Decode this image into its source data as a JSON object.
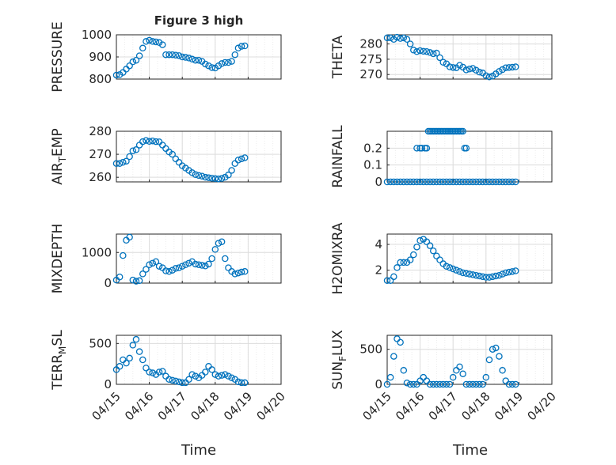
{
  "figure": {
    "title": "Figure 3 high"
  },
  "time_axis": {
    "tick_labels": [
      "04/15",
      "04/16",
      "04/17",
      "04/18",
      "04/19",
      "04/20"
    ],
    "xlabel": "Time"
  },
  "colors": {
    "marker": "#0072bd",
    "axis": "#262626"
  },
  "chart_data": [
    {
      "type": "scatter",
      "panel": "top-left",
      "title": "Figure 3 high",
      "ylabel": "PRESSURE",
      "ylim": [
        800,
        1000
      ],
      "yticks": [
        800,
        900,
        1000
      ],
      "xlim": [
        0,
        5
      ],
      "grid": true,
      "x": [
        0,
        0.1,
        0.2,
        0.3,
        0.4,
        0.5,
        0.6,
        0.7,
        0.8,
        0.9,
        1.0,
        1.1,
        1.2,
        1.3,
        1.4,
        1.5,
        1.6,
        1.7,
        1.8,
        1.9,
        2.0,
        2.1,
        2.2,
        2.3,
        2.4,
        2.5,
        2.6,
        2.7,
        2.8,
        2.9,
        3.0,
        3.1,
        3.2,
        3.3,
        3.4,
        3.5,
        3.6,
        3.7,
        3.8,
        3.9
      ],
      "y": [
        818,
        820,
        830,
        845,
        860,
        878,
        885,
        905,
        940,
        970,
        975,
        970,
        968,
        965,
        955,
        910,
        910,
        910,
        908,
        906,
        900,
        898,
        895,
        890,
        885,
        885,
        880,
        868,
        860,
        852,
        850,
        860,
        870,
        875,
        875,
        880,
        910,
        940,
        948,
        950
      ]
    },
    {
      "type": "scatter",
      "panel": "top-right",
      "ylabel": "THETA",
      "ylim": [
        268.5,
        283
      ],
      "yticks": [
        270,
        275,
        280
      ],
      "xlim": [
        0,
        5
      ],
      "grid": true,
      "x": [
        0,
        0.1,
        0.2,
        0.3,
        0.4,
        0.5,
        0.6,
        0.7,
        0.8,
        0.9,
        1.0,
        1.1,
        1.2,
        1.3,
        1.4,
        1.5,
        1.6,
        1.7,
        1.8,
        1.9,
        2.0,
        2.1,
        2.2,
        2.3,
        2.4,
        2.5,
        2.6,
        2.7,
        2.8,
        2.9,
        3.0,
        3.1,
        3.2,
        3.3,
        3.4,
        3.5,
        3.6,
        3.7,
        3.8,
        3.9
      ],
      "y": [
        282,
        282,
        281.5,
        282.2,
        281.8,
        282,
        281.5,
        280,
        278,
        277.5,
        277.8,
        277.6,
        277.5,
        277.2,
        276.8,
        277,
        275.5,
        274,
        273.5,
        272.5,
        272.3,
        272.2,
        273,
        272.4,
        271.5,
        271.8,
        272,
        271.4,
        270.8,
        270.5,
        269.6,
        269.2,
        269.5,
        270.2,
        271,
        271.6,
        272.2,
        272.3,
        272.4,
        272.5
      ]
    },
    {
      "type": "scatter",
      "panel": "row2-left",
      "ylabel": "AIR_TEMP",
      "ylim": [
        258,
        280
      ],
      "yticks": [
        260,
        270,
        280
      ],
      "xlim": [
        0,
        5
      ],
      "grid": true,
      "x": [
        0,
        0.1,
        0.2,
        0.3,
        0.4,
        0.5,
        0.6,
        0.7,
        0.8,
        0.9,
        1.0,
        1.1,
        1.2,
        1.3,
        1.4,
        1.5,
        1.6,
        1.7,
        1.8,
        1.9,
        2.0,
        2.1,
        2.2,
        2.3,
        2.4,
        2.5,
        2.6,
        2.7,
        2.8,
        2.9,
        3.0,
        3.1,
        3.2,
        3.3,
        3.4,
        3.5,
        3.6,
        3.7,
        3.8,
        3.9
      ],
      "y": [
        266,
        266,
        266.5,
        267,
        269,
        271.5,
        272,
        274,
        275.5,
        276,
        275.6,
        275.8,
        275.5,
        275.4,
        274,
        272.5,
        271,
        270,
        268,
        266.5,
        265,
        264,
        263,
        262,
        261.2,
        260.8,
        260.5,
        260,
        259.8,
        259.6,
        259.4,
        259.3,
        259.5,
        260,
        261,
        263,
        266,
        267.5,
        268,
        268.5
      ]
    },
    {
      "type": "scatter",
      "panel": "row2-right",
      "ylabel": "RAINFALL",
      "ylim": [
        0,
        0.3
      ],
      "yticks": [
        0,
        0.1,
        0.2
      ],
      "xlim": [
        0,
        5
      ],
      "grid": true,
      "x": [
        0,
        0.1,
        0.2,
        0.3,
        0.4,
        0.5,
        0.6,
        0.7,
        0.8,
        0.9,
        1.0,
        1.1,
        1.2,
        1.3,
        1.4,
        1.5,
        1.6,
        1.7,
        1.8,
        1.9,
        2.0,
        2.1,
        2.2,
        2.3,
        2.4,
        2.5,
        2.6,
        2.7,
        2.8,
        2.9,
        3.0,
        3.1,
        3.2,
        3.3,
        3.4,
        3.5,
        3.6,
        3.7,
        3.8,
        3.9,
        0.9,
        1.0,
        1.05,
        1.15,
        1.2,
        1.25,
        1.3,
        1.35,
        1.4,
        1.45,
        1.5,
        1.55,
        1.6,
        1.65,
        1.7,
        1.75,
        1.8,
        1.85,
        1.9,
        1.95,
        2.0,
        2.05,
        2.1,
        2.15,
        2.2,
        2.25,
        2.3,
        2.35,
        2.4
      ],
      "y": [
        0,
        0,
        0,
        0,
        0,
        0,
        0,
        0,
        0,
        0,
        0,
        0,
        0,
        0,
        0,
        0,
        0,
        0,
        0,
        0,
        0,
        0,
        0,
        0,
        0,
        0,
        0,
        0,
        0,
        0,
        0,
        0,
        0,
        0,
        0,
        0,
        0,
        0,
        0,
        0,
        0.2,
        0.2,
        0.2,
        0.2,
        0.2,
        0.3,
        0.3,
        0.3,
        0.3,
        0.3,
        0.3,
        0.3,
        0.3,
        0.3,
        0.3,
        0.3,
        0.3,
        0.3,
        0.3,
        0.3,
        0.3,
        0.3,
        0.3,
        0.3,
        0.3,
        0.3,
        0.3,
        0.2,
        0.2
      ]
    },
    {
      "type": "scatter",
      "panel": "row3-left",
      "ylabel": "MIXDEPTH",
      "ylim": [
        0,
        1600
      ],
      "yticks": [
        0,
        1000
      ],
      "xlim": [
        0,
        5
      ],
      "grid": true,
      "x": [
        0,
        0.1,
        0.2,
        0.3,
        0.4,
        0.5,
        0.6,
        0.7,
        0.8,
        0.9,
        1.0,
        1.1,
        1.2,
        1.3,
        1.4,
        1.5,
        1.6,
        1.7,
        1.8,
        1.9,
        2.0,
        2.1,
        2.2,
        2.3,
        2.4,
        2.5,
        2.6,
        2.7,
        2.8,
        2.9,
        3.0,
        3.1,
        3.2,
        3.3,
        3.4,
        3.5,
        3.6,
        3.7,
        3.8,
        3.9
      ],
      "y": [
        100,
        200,
        900,
        1400,
        1500,
        100,
        60,
        80,
        300,
        450,
        600,
        650,
        700,
        550,
        500,
        400,
        380,
        420,
        480,
        500,
        550,
        600,
        650,
        700,
        620,
        600,
        580,
        560,
        620,
        800,
        1100,
        1300,
        1350,
        800,
        500,
        380,
        300,
        330,
        360,
        380
      ]
    },
    {
      "type": "scatter",
      "panel": "row3-right",
      "ylabel": "H2OMIXRA",
      "ylim": [
        1,
        4.8
      ],
      "yticks": [
        2,
        4
      ],
      "xlim": [
        0,
        5
      ],
      "grid": true,
      "x": [
        0,
        0.1,
        0.2,
        0.3,
        0.4,
        0.5,
        0.6,
        0.7,
        0.8,
        0.9,
        1.0,
        1.1,
        1.2,
        1.3,
        1.4,
        1.5,
        1.6,
        1.7,
        1.8,
        1.9,
        2.0,
        2.1,
        2.2,
        2.3,
        2.4,
        2.5,
        2.6,
        2.7,
        2.8,
        2.9,
        3.0,
        3.1,
        3.2,
        3.3,
        3.4,
        3.5,
        3.6,
        3.7,
        3.8,
        3.9
      ],
      "y": [
        1.2,
        1.2,
        1.5,
        2.2,
        2.6,
        2.6,
        2.6,
        2.8,
        3.2,
        3.8,
        4.3,
        4.4,
        4.2,
        3.9,
        3.5,
        3.1,
        2.8,
        2.5,
        2.3,
        2.2,
        2.1,
        2.0,
        1.9,
        1.8,
        1.75,
        1.7,
        1.65,
        1.6,
        1.55,
        1.5,
        1.45,
        1.45,
        1.5,
        1.55,
        1.6,
        1.7,
        1.8,
        1.85,
        1.9,
        1.95
      ]
    },
    {
      "type": "scatter",
      "panel": "bottom-left",
      "ylabel": "TERR_MSL",
      "ylim": [
        0,
        600
      ],
      "yticks": [
        0,
        500
      ],
      "xlim": [
        0,
        5
      ],
      "grid": true,
      "x": [
        0,
        0.1,
        0.2,
        0.3,
        0.4,
        0.5,
        0.6,
        0.7,
        0.8,
        0.9,
        1.0,
        1.1,
        1.2,
        1.3,
        1.4,
        1.5,
        1.6,
        1.7,
        1.8,
        1.9,
        2.0,
        2.1,
        2.2,
        2.3,
        2.4,
        2.5,
        2.6,
        2.7,
        2.8,
        2.9,
        3.0,
        3.1,
        3.2,
        3.3,
        3.4,
        3.5,
        3.6,
        3.7,
        3.8,
        3.9
      ],
      "y": [
        180,
        220,
        300,
        260,
        320,
        480,
        550,
        400,
        300,
        200,
        150,
        140,
        120,
        150,
        160,
        100,
        60,
        50,
        40,
        30,
        20,
        20,
        60,
        120,
        100,
        80,
        110,
        150,
        220,
        180,
        120,
        100,
        110,
        120,
        100,
        80,
        60,
        30,
        20,
        20
      ]
    },
    {
      "type": "scatter",
      "panel": "bottom-right",
      "ylabel": "SUN_FLUX",
      "ylim": [
        0,
        700
      ],
      "yticks": [
        0,
        500
      ],
      "xlim": [
        0,
        5
      ],
      "grid": true,
      "x": [
        0,
        0.1,
        0.2,
        0.3,
        0.4,
        0.5,
        0.6,
        0.7,
        0.8,
        0.9,
        1.0,
        1.1,
        1.2,
        1.3,
        1.4,
        1.5,
        1.6,
        1.7,
        1.8,
        1.9,
        2.0,
        2.1,
        2.2,
        2.3,
        2.4,
        2.5,
        2.6,
        2.7,
        2.8,
        2.9,
        3.0,
        3.1,
        3.2,
        3.3,
        3.4,
        3.5,
        3.6,
        3.7,
        3.8,
        3.9
      ],
      "y": [
        0,
        100,
        400,
        650,
        600,
        200,
        20,
        0,
        0,
        0,
        50,
        100,
        50,
        0,
        0,
        0,
        0,
        0,
        0,
        0,
        100,
        200,
        250,
        150,
        0,
        0,
        0,
        0,
        0,
        0,
        100,
        350,
        500,
        520,
        400,
        200,
        50,
        0,
        0,
        0
      ]
    }
  ]
}
